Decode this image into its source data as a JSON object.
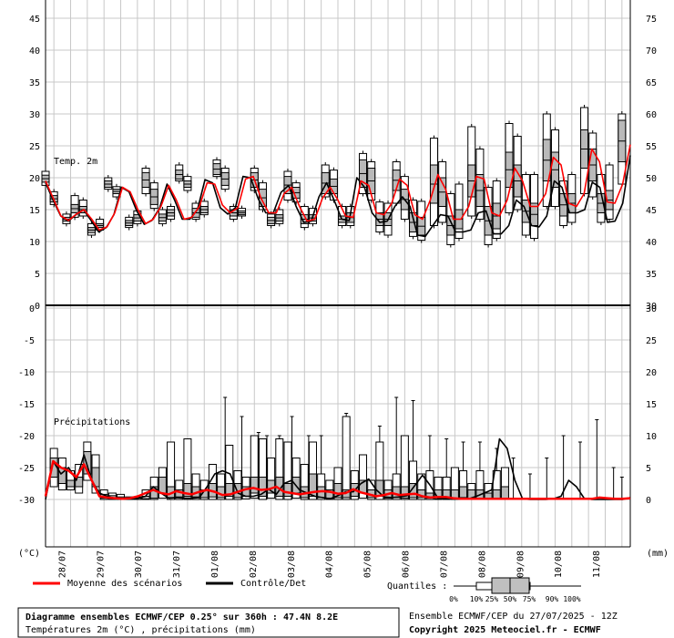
{
  "chart_data": {
    "type": "line",
    "y_left_top": [
      45,
      40,
      35,
      30,
      25,
      20,
      15,
      10,
      5,
      0
    ],
    "y_right_top": [
      75,
      70,
      65,
      60,
      55,
      50,
      45,
      40,
      35,
      30
    ],
    "y_left_bottom": [
      0,
      -5,
      -10,
      -15,
      -20,
      -25,
      -30
    ],
    "y_right_bottom": [
      30,
      25,
      20,
      15,
      10,
      5,
      0
    ],
    "unit_left": "(°C)",
    "unit_right": "(mm)",
    "dates": [
      "28/07",
      "29/07",
      "30/07",
      "31/07",
      "01/08",
      "02/08",
      "03/08",
      "04/08",
      "05/08",
      "06/08",
      "07/08",
      "08/08",
      "09/08",
      "10/08",
      "11/08"
    ],
    "panel_temp_label": "Temp. 2m",
    "panel_precip_label": "Précipitations",
    "temp_mean": [
      19.5,
      16.8,
      14,
      13.3,
      14.3,
      15,
      13.5,
      11.8,
      12.3,
      14.5,
      18.5,
      17.8,
      15,
      12.8,
      13.5,
      15.5,
      18.8,
      16.5,
      13.5,
      13.8,
      15.5,
      19.2,
      19,
      15.7,
      14.5,
      15.3,
      19.8,
      20.2,
      16.8,
      14.5,
      14.5,
      17.5,
      18.5,
      15.5,
      13.2,
      13.5,
      16.8,
      18.5,
      16.5,
      14,
      13.8,
      19.5,
      18.8,
      14.5,
      14.2,
      16,
      19.8,
      18.8,
      14.2,
      13.5,
      16.5,
      20.5,
      18.2,
      13.5,
      13.5,
      15.5,
      20.2,
      19.8,
      14.5,
      14,
      16.5,
      21.5,
      19.5,
      15.5,
      15.5,
      17.5,
      23.2,
      22,
      16,
      15.5,
      17.5,
      24.5,
      22.5,
      16.2,
      16,
      19,
      25.2
    ],
    "temp_control": [
      19.2,
      16.5,
      14,
      13.2,
      14.2,
      15,
      13.3,
      11.5,
      12.2,
      14.2,
      18.5,
      17.8,
      14.8,
      12.7,
      13.3,
      15.2,
      19,
      16.5,
      13.5,
      13.5,
      15,
      19.7,
      19.2,
      15.3,
      14.3,
      15.3,
      20.2,
      20,
      16.7,
      14.5,
      14.5,
      17.7,
      18.8,
      15.5,
      13,
      13.2,
      17,
      19.2,
      16.5,
      13.5,
      13.3,
      20,
      18.5,
      14.5,
      13,
      13.2,
      15.5,
      17,
      15.5,
      11,
      10.8,
      12.5,
      14.2,
      14,
      11.5,
      11.5,
      11.8,
      14.5,
      14.8,
      11.2,
      11.2,
      12.5,
      16.5,
      15.5,
      12.5,
      12.3,
      14,
      19.5,
      18.5,
      14.5,
      14.5,
      15,
      19.3,
      18.5,
      13,
      13.2,
      16,
      23.5
    ],
    "precip_mean": [
      0.5,
      6,
      5,
      4.5,
      3.5,
      5.5,
      3,
      0.5,
      0.3,
      0.2,
      0.1,
      0.2,
      0.5,
      1,
      1.5,
      1,
      0.8,
      1.3,
      1,
      0.8,
      1.2,
      1.5,
      1.2,
      0.7,
      0.8,
      1.2,
      1.6,
      1.8,
      1.5,
      1.6,
      2,
      1.2,
      1,
      0.8,
      1,
      1.2,
      1.3,
      1.2,
      0.9,
      1,
      1.6,
      1.1,
      0.8,
      0.5,
      0.7,
      1,
      0.7,
      0.8,
      0.9,
      0.5,
      0.3,
      0.4,
      0.4,
      0.2,
      0.1,
      0.1,
      0.1,
      0.1,
      0.1,
      0.1,
      0.1,
      0.1,
      0.1,
      0.1,
      0.1,
      0.1,
      0.1,
      0.1,
      0.1,
      0.1,
      0.1,
      0.1,
      0.3,
      0.2,
      0.1,
      0.1,
      0.2
    ],
    "precip_control": [
      0,
      6,
      4,
      5,
      3,
      7,
      3,
      1,
      0.5,
      0.2,
      0.1,
      0.1,
      0.2,
      0.5,
      2,
      1,
      0.2,
      0.3,
      0.2,
      0.2,
      0.3,
      2,
      4,
      4.5,
      4,
      1,
      0.5,
      0.5,
      0.8,
      1.6,
      0.8,
      2.5,
      3,
      1.5,
      1,
      0.5,
      0.3,
      0.1,
      0.6,
      1.2,
      1.2,
      2.5,
      3.2,
      1.5,
      0.4,
      0.3,
      0.4,
      0.6,
      2.2,
      3.8,
      2.2,
      0.2,
      0.1,
      0.1,
      0.1,
      0.1,
      0.5,
      1,
      1.5,
      9.5,
      8,
      3,
      0.1,
      0,
      0,
      0,
      0.1,
      0.5,
      3,
      2,
      0.2,
      0,
      0,
      0,
      0,
      0,
      0.3
    ],
    "temp_boxes": [
      {
        "i": 0,
        "p10": 18.8,
        "q25": 19.3,
        "q75": 20.4,
        "p90": 21
      },
      {
        "i": 2,
        "p10": 15.8,
        "q25": 16.2,
        "q75": 17.2,
        "p90": 17.8
      },
      {
        "i": 5,
        "p10": 12.8,
        "q25": 13.2,
        "q75": 13.8,
        "p90": 14.3
      },
      {
        "i": 7,
        "p10": 13.8,
        "q25": 14.5,
        "q75": 15.8,
        "p90": 17.2
      },
      {
        "i": 9,
        "p10": 14,
        "q25": 14.5,
        "q75": 15.5,
        "p90": 16.5
      },
      {
        "i": 11,
        "p10": 11,
        "q25": 11.4,
        "q75": 12.2,
        "p90": 12.8
      },
      {
        "i": 13,
        "p10": 11.8,
        "q25": 12.2,
        "q75": 12.8,
        "p90": 13.5
      },
      {
        "i": 15,
        "p10": 18.2,
        "q25": 18.5,
        "q75": 19.5,
        "p90": 20
      },
      {
        "i": 17,
        "p10": 17,
        "q25": 17.5,
        "q75": 18.2,
        "p90": 18.6
      },
      {
        "i": 20,
        "p10": 12.2,
        "q25": 12.5,
        "q75": 13.3,
        "p90": 13.8
      },
      {
        "i": 22,
        "p10": 12.8,
        "q25": 13.2,
        "q75": 14.2,
        "p90": 14.8
      },
      {
        "i": 24,
        "p10": 17.5,
        "q25": 18.5,
        "q75": 20.8,
        "p90": 21.5
      },
      {
        "i": 26,
        "p10": 15.2,
        "q25": 15.8,
        "q75": 18.2,
        "p90": 19.2
      },
      {
        "i": 28,
        "p10": 12.8,
        "q25": 13.2,
        "q75": 14.3,
        "p90": 15
      },
      {
        "i": 30,
        "p10": 13.5,
        "q25": 14,
        "q75": 15,
        "p90": 15.5
      },
      {
        "i": 32,
        "p10": 19.5,
        "q25": 19.8,
        "q75": 21.2,
        "p90": 22
      },
      {
        "i": 34,
        "p10": 18,
        "q25": 18.5,
        "q75": 19.5,
        "p90": 20.2
      },
      {
        "i": 36,
        "p10": 13.5,
        "q25": 13.8,
        "q75": 15.2,
        "p90": 16
      },
      {
        "i": 38,
        "p10": 14.2,
        "q25": 14.5,
        "q75": 15.5,
        "p90": 16.3
      },
      {
        "i": 41,
        "p10": 20.2,
        "q25": 20.5,
        "q75": 22.2,
        "p90": 22.8
      },
      {
        "i": 43,
        "p10": 18.2,
        "q25": 18.8,
        "q75": 20.8,
        "p90": 21.5
      },
      {
        "i": 45,
        "p10": 13.5,
        "q25": 14,
        "q75": 15,
        "p90": 15.5
      },
      {
        "i": 47,
        "p10": 14,
        "q25": 14.2,
        "q75": 14.8,
        "p90": 15.2
      },
      {
        "i": 50,
        "p10": 18,
        "q25": 18.5,
        "q75": 20.8,
        "p90": 21.5
      },
      {
        "i": 52,
        "p10": 15,
        "q25": 15.5,
        "q75": 18.2,
        "p90": 19.2
      },
      {
        "i": 54,
        "p10": 12.5,
        "q25": 12.8,
        "q75": 13.8,
        "p90": 14.3
      },
      {
        "i": 56,
        "p10": 12.8,
        "q25": 13.2,
        "q75": 14.2,
        "p90": 15
      },
      {
        "i": 58,
        "p10": 16.5,
        "q25": 17.5,
        "q75": 20.2,
        "p90": 21
      },
      {
        "i": 60,
        "p10": 16.2,
        "q25": 16.8,
        "q75": 18.5,
        "p90": 19.2
      },
      {
        "i": 62,
        "p10": 12.2,
        "q25": 12.8,
        "q75": 14.2,
        "p90": 15.5
      },
      {
        "i": 64,
        "p10": 12.8,
        "q25": 13.2,
        "q75": 14.2,
        "p90": 15.2
      },
      {
        "i": 67,
        "p10": 17,
        "q25": 17.5,
        "q75": 20.8,
        "p90": 22
      },
      {
        "i": 69,
        "p10": 16.5,
        "q25": 17.5,
        "q75": 19.8,
        "p90": 21.2
      },
      {
        "i": 71,
        "p10": 12.5,
        "q25": 13,
        "q75": 14,
        "p90": 15.5
      },
      {
        "i": 73,
        "p10": 12.5,
        "q25": 13,
        "q75": 14.5,
        "p90": 15.5
      },
      {
        "i": 76,
        "p10": 17.5,
        "q25": 18.5,
        "q75": 22.8,
        "p90": 23.8
      },
      {
        "i": 78,
        "p10": 16.5,
        "q25": 17.5,
        "q75": 21.5,
        "p90": 22.5
      },
      {
        "i": 80,
        "p10": 11.5,
        "q25": 12.5,
        "q75": 14.5,
        "p90": 16.2
      },
      {
        "i": 82,
        "p10": 11,
        "q25": 12.5,
        "q75": 14.5,
        "p90": 16
      },
      {
        "i": 84,
        "p10": 16,
        "q25": 18,
        "q75": 21.2,
        "p90": 22.5
      },
      {
        "i": 86,
        "p10": 13.5,
        "q25": 15,
        "q75": 18.2,
        "p90": 20.2
      },
      {
        "i": 88,
        "p10": 10.8,
        "q25": 11.5,
        "q75": 14.5,
        "p90": 16.5
      },
      {
        "i": 90,
        "p10": 10.2,
        "q25": 11,
        "q75": 13.8,
        "p90": 16.3
      },
      {
        "i": 93,
        "p10": 12.5,
        "q25": 16,
        "q75": 22,
        "p90": 26.2
      },
      {
        "i": 95,
        "p10": 13,
        "q25": 15.5,
        "q75": 20,
        "p90": 22.5
      },
      {
        "i": 97,
        "p10": 9.5,
        "q25": 11,
        "q75": 14,
        "p90": 17.5
      },
      {
        "i": 99,
        "p10": 10.5,
        "q25": 12,
        "q75": 15,
        "p90": 19
      },
      {
        "i": 102,
        "p10": 14,
        "q25": 17,
        "q75": 22,
        "p90": 28
      },
      {
        "i": 104,
        "p10": 13.5,
        "q25": 15.5,
        "q75": 20.5,
        "p90": 24.5
      },
      {
        "i": 106,
        "p10": 9.5,
        "q25": 11,
        "q75": 15.5,
        "p90": 18.5
      },
      {
        "i": 108,
        "p10": 10.5,
        "q25": 12,
        "q75": 16,
        "p90": 19.5
      },
      {
        "i": 111,
        "p10": 14.5,
        "q25": 18.5,
        "q75": 24,
        "p90": 28.5
      },
      {
        "i": 113,
        "p10": 15,
        "q25": 17,
        "q75": 22,
        "p90": 26.5
      },
      {
        "i": 115,
        "p10": 11,
        "q25": 13,
        "q75": 16.5,
        "p90": 20.5
      },
      {
        "i": 117,
        "p10": 10.5,
        "q25": 12.5,
        "q75": 16,
        "p90": 20.5
      },
      {
        "i": 120,
        "p10": 15.5,
        "q25": 19.5,
        "q75": 26,
        "p90": 30
      },
      {
        "i": 122,
        "p10": 15.5,
        "q25": 18.5,
        "q75": 24,
        "p90": 27.5
      },
      {
        "i": 124,
        "p10": 12.5,
        "q25": 14,
        "q75": 17.5,
        "p90": 19.5
      },
      {
        "i": 126,
        "p10": 13,
        "q25": 14.5,
        "q75": 17.5,
        "p90": 20.5
      },
      {
        "i": 129,
        "p10": 17.5,
        "q25": 21.5,
        "q75": 27.5,
        "p90": 31
      },
      {
        "i": 131,
        "p10": 17,
        "q25": 19.5,
        "q75": 24.5,
        "p90": 27
      },
      {
        "i": 133,
        "p10": 13,
        "q25": 14.5,
        "q75": 17.5,
        "p90": 20.5
      },
      {
        "i": 135,
        "p10": 13.5,
        "q25": 15,
        "q75": 18,
        "p90": 22
      },
      {
        "i": 138,
        "p10": 19,
        "q25": 22.5,
        "q75": 29,
        "p90": 30
      }
    ],
    "precip_boxes": [
      {
        "i": 2,
        "p10": 2,
        "q25": 3.5,
        "q75": 6.5,
        "p90": 8
      },
      {
        "i": 4,
        "p10": 1.5,
        "q25": 2.5,
        "q75": 5,
        "p90": 6.5
      },
      {
        "i": 6,
        "p10": 1.5,
        "q25": 2,
        "q75": 3,
        "p90": 4.5
      },
      {
        "i": 8,
        "p10": 1,
        "q25": 2,
        "q75": 3.5,
        "p90": 5.5
      },
      {
        "i": 10,
        "p10": 3,
        "q25": 4,
        "q75": 7.5,
        "p90": 9
      },
      {
        "i": 12,
        "p10": 1,
        "q25": 2,
        "q75": 5,
        "p90": 7
      },
      {
        "i": 14,
        "p10": 0,
        "q25": 0.2,
        "q75": 0.8,
        "p90": 1.5
      },
      {
        "i": 16,
        "p10": 0,
        "q25": 0.2,
        "q75": 0.6,
        "p90": 1
      },
      {
        "i": 18,
        "p10": 0,
        "q25": 0.1,
        "q75": 0.4,
        "p90": 0.8
      },
      {
        "i": 20,
        "p10": 0,
        "q25": 0,
        "q75": 0.2,
        "p90": 0.4
      },
      {
        "i": 22,
        "p10": 0,
        "q25": 0,
        "q75": 0.2,
        "p90": 0.4
      },
      {
        "i": 24,
        "p10": 0,
        "q25": 0.1,
        "q75": 0.5,
        "p90": 1.5
      },
      {
        "i": 26,
        "p10": 0,
        "q25": 0.2,
        "q75": 2,
        "p90": 3.5
      },
      {
        "i": 28,
        "p10": 0.2,
        "q25": 1,
        "q75": 3.5,
        "p90": 5
      },
      {
        "i": 30,
        "p10": 0,
        "q25": 0.3,
        "q75": 2,
        "p90": 9
      },
      {
        "i": 32,
        "p10": 0,
        "q25": 0.4,
        "q75": 1.5,
        "p90": 3
      },
      {
        "i": 34,
        "p10": 0,
        "q25": 0.5,
        "q75": 2.5,
        "p90": 9.5
      },
      {
        "i": 36,
        "p10": 0,
        "q25": 0.4,
        "q75": 2,
        "p90": 4
      },
      {
        "i": 38,
        "p10": 0,
        "q25": 0.3,
        "q75": 1.5,
        "p90": 3
      },
      {
        "i": 40,
        "p10": 0,
        "q25": 0.4,
        "q75": 2.5,
        "p90": 5.5
      },
      {
        "i": 42,
        "p10": 0,
        "q25": 0.3,
        "q75": 2,
        "p90": 4
      },
      {
        "i": 44,
        "p10": 0,
        "q25": 0.5,
        "q75": 2.5,
        "p90": 8.5
      },
      {
        "i": 46,
        "p10": 0,
        "q25": 0.3,
        "q75": 2.5,
        "p90": 4.5
      },
      {
        "i": 48,
        "p10": 0.1,
        "q25": 0.5,
        "q75": 2,
        "p90": 3.5
      },
      {
        "i": 50,
        "p10": 0.2,
        "q25": 1,
        "q75": 3.5,
        "p90": 10
      },
      {
        "i": 52,
        "p10": 0,
        "q25": 0.5,
        "q75": 3.5,
        "p90": 9.5
      },
      {
        "i": 54,
        "p10": 0.2,
        "q25": 1,
        "q75": 3,
        "p90": 6.5
      },
      {
        "i": 56,
        "p10": 0,
        "q25": 0.5,
        "q75": 3.5,
        "p90": 9.5
      },
      {
        "i": 58,
        "p10": 0,
        "q25": 0.5,
        "q75": 2.5,
        "p90": 9
      },
      {
        "i": 60,
        "p10": 0.2,
        "q25": 1,
        "q75": 3.5,
        "p90": 6.5
      },
      {
        "i": 62,
        "p10": 0,
        "q25": 0.3,
        "q75": 2,
        "p90": 5.5
      },
      {
        "i": 64,
        "p10": 0,
        "q25": 0.5,
        "q75": 4,
        "p90": 9
      },
      {
        "i": 66,
        "p10": 0,
        "q25": 0.3,
        "q75": 2,
        "p90": 4
      },
      {
        "i": 68,
        "p10": 0,
        "q25": 0.2,
        "q75": 1.5,
        "p90": 3
      },
      {
        "i": 70,
        "p10": 0,
        "q25": 0.3,
        "q75": 2.5,
        "p90": 5
      },
      {
        "i": 72,
        "p10": 0,
        "q25": 0.3,
        "q75": 1.5,
        "p90": 13
      },
      {
        "i": 74,
        "p10": 0,
        "q25": 0.5,
        "q75": 2.5,
        "p90": 4.5
      },
      {
        "i": 76,
        "p10": 0.2,
        "q25": 1,
        "q75": 3,
        "p90": 7
      },
      {
        "i": 78,
        "p10": 0,
        "q25": 0.3,
        "q75": 1.5,
        "p90": 3
      },
      {
        "i": 80,
        "p10": 0,
        "q25": 0.5,
        "q75": 3,
        "p90": 9
      },
      {
        "i": 82,
        "p10": 0,
        "q25": 0.2,
        "q75": 1.5,
        "p90": 3
      },
      {
        "i": 84,
        "p10": 0,
        "q25": 0.3,
        "q75": 2,
        "p90": 4
      },
      {
        "i": 86,
        "p10": 0,
        "q25": 0.2,
        "q75": 2,
        "p90": 10
      },
      {
        "i": 88,
        "p10": 0,
        "q25": 0.3,
        "q75": 2.5,
        "p90": 6
      },
      {
        "i": 90,
        "p10": 0,
        "q25": 0.3,
        "q75": 1.5,
        "p90": 4
      },
      {
        "i": 92,
        "p10": 0,
        "q25": 0.2,
        "q75": 1,
        "p90": 4.5
      },
      {
        "i": 94,
        "p10": 0,
        "q25": 0.1,
        "q75": 1.5,
        "p90": 3.5
      },
      {
        "i": 96,
        "p10": 0,
        "q25": 0.2,
        "q75": 1.5,
        "p90": 3.5
      },
      {
        "i": 98,
        "p10": 0,
        "q25": 0.1,
        "q75": 1.5,
        "p90": 5
      },
      {
        "i": 100,
        "p10": 0,
        "q25": 0.3,
        "q75": 2,
        "p90": 4.5
      },
      {
        "i": 102,
        "p10": 0,
        "q25": 0.2,
        "q75": 1.5,
        "p90": 2.5
      },
      {
        "i": 104,
        "p10": 0,
        "q25": 0.2,
        "q75": 1.5,
        "p90": 4.5
      },
      {
        "i": 106,
        "p10": 0,
        "q25": 0.1,
        "q75": 1,
        "p90": 2.5
      },
      {
        "i": 108,
        "p10": 0,
        "q25": 0.2,
        "q75": 1.5,
        "p90": 4.5
      },
      {
        "i": 110,
        "p10": 0,
        "q25": 0.2,
        "q75": 2,
        "p90": 5
      }
    ],
    "precip_whiskers": [
      {
        "i": 43,
        "top": 16
      },
      {
        "i": 47,
        "top": 13
      },
      {
        "i": 51,
        "top": 10.5
      },
      {
        "i": 53,
        "top": 10
      },
      {
        "i": 56,
        "top": 10
      },
      {
        "i": 59,
        "top": 13
      },
      {
        "i": 63,
        "top": 10
      },
      {
        "i": 66,
        "top": 10
      },
      {
        "i": 72,
        "top": 13.5
      },
      {
        "i": 80,
        "top": 11.5
      },
      {
        "i": 84,
        "top": 16
      },
      {
        "i": 88,
        "top": 15.5
      },
      {
        "i": 92,
        "top": 10
      },
      {
        "i": 96,
        "top": 9.5
      },
      {
        "i": 100,
        "top": 9
      },
      {
        "i": 104,
        "top": 9
      },
      {
        "i": 108,
        "top": 8
      },
      {
        "i": 112,
        "top": 6.5
      },
      {
        "i": 116,
        "top": 4
      },
      {
        "i": 120,
        "top": 6.5
      },
      {
        "i": 124,
        "top": 10
      },
      {
        "i": 128,
        "top": 9
      },
      {
        "i": 132,
        "top": 12.5
      },
      {
        "i": 136,
        "top": 5
      },
      {
        "i": 138,
        "top": 3.5
      }
    ]
  },
  "legend": {
    "mean_label": "Moyenne des scénarios",
    "control_label": "Contrôle/Det",
    "quantiles_label": "Quantiles :",
    "quantile_ticks": [
      "0%",
      "10%",
      "25%",
      "50%",
      "75%",
      "90%",
      "100%"
    ],
    "mean_color": "#ff0000",
    "control_color": "#000000"
  },
  "footer": {
    "title_line1": "Diagramme ensembles ECMWF/CEP 0.25° sur 360h : 47.4N 8.2E",
    "title_line2": "Températures 2m (°C) , précipitations (mm)",
    "run_info": "Ensemble ECMWF/CEP du 27/07/2025 - 12Z",
    "copyright": "Copyright 2025 Meteociel.fr - ECMWF"
  }
}
